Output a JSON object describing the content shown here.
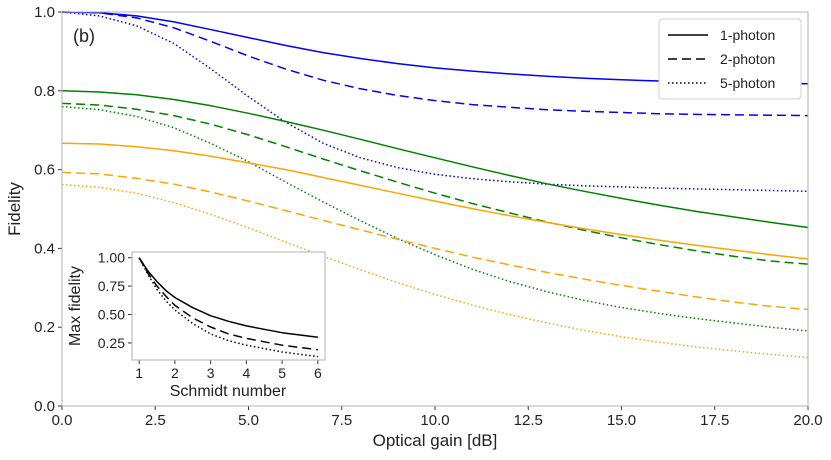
{
  "chart_data": [
    {
      "type": "line",
      "panel_label": "(b)",
      "xlabel": "Optical gain [dB]",
      "ylabel": "Fidelity",
      "xlim": [
        0,
        20
      ],
      "ylim": [
        0,
        1
      ],
      "xticks": [
        "0.0",
        "2.5",
        "5.0",
        "7.5",
        "10.0",
        "12.5",
        "15.0",
        "17.5",
        "20.0"
      ],
      "yticks": [
        "0.0",
        "0.2",
        "0.4",
        "0.6",
        "0.8",
        "1.0"
      ],
      "legend": {
        "placement": "top-right",
        "entries": [
          {
            "label": "1-photon",
            "style": "solid"
          },
          {
            "label": "2-photon",
            "style": "dashed"
          },
          {
            "label": "5-photon",
            "style": "dotted"
          }
        ]
      },
      "x": [
        0,
        1,
        2,
        3,
        4,
        5,
        6,
        7,
        8,
        9,
        10,
        11,
        12,
        13,
        14,
        15,
        16,
        17,
        18,
        19,
        20
      ],
      "series": [
        {
          "name": "blue 1-photon",
          "color": "#0000ff",
          "style": "solid",
          "values": [
            1.0,
            0.998,
            0.99,
            0.975,
            0.955,
            0.935,
            0.915,
            0.897,
            0.882,
            0.869,
            0.858,
            0.85,
            0.843,
            0.837,
            0.832,
            0.828,
            0.825,
            0.822,
            0.82,
            0.819,
            0.818
          ]
        },
        {
          "name": "blue 2-photon",
          "color": "#0000ff",
          "style": "dashed",
          "values": [
            1.0,
            0.998,
            0.985,
            0.96,
            0.925,
            0.888,
            0.855,
            0.827,
            0.805,
            0.788,
            0.775,
            0.765,
            0.758,
            0.752,
            0.748,
            0.745,
            0.742,
            0.74,
            0.739,
            0.738,
            0.737
          ]
        },
        {
          "name": "blue 5-photon",
          "color": "#0000ff",
          "style": "dotted",
          "values": [
            1.0,
            0.99,
            0.965,
            0.92,
            0.855,
            0.785,
            0.72,
            0.667,
            0.63,
            0.605,
            0.588,
            0.577,
            0.569,
            0.563,
            0.559,
            0.556,
            0.553,
            0.551,
            0.549,
            0.547,
            0.545
          ]
        },
        {
          "name": "green 1-photon",
          "color": "#008000",
          "style": "solid",
          "values": [
            0.8,
            0.797,
            0.79,
            0.778,
            0.762,
            0.743,
            0.722,
            0.7,
            0.677,
            0.653,
            0.63,
            0.607,
            0.585,
            0.564,
            0.545,
            0.527,
            0.51,
            0.494,
            0.48,
            0.466,
            0.453
          ]
        },
        {
          "name": "green 2-photon",
          "color": "#008000",
          "style": "dashed",
          "values": [
            0.768,
            0.764,
            0.753,
            0.737,
            0.715,
            0.688,
            0.658,
            0.627,
            0.597,
            0.568,
            0.54,
            0.514,
            0.49,
            0.467,
            0.446,
            0.427,
            0.41,
            0.394,
            0.38,
            0.368,
            0.36
          ]
        },
        {
          "name": "green 5-photon",
          "color": "#008000",
          "style": "dotted",
          "values": [
            0.76,
            0.752,
            0.735,
            0.706,
            0.666,
            0.62,
            0.568,
            0.518,
            0.47,
            0.425,
            0.384,
            0.347,
            0.316,
            0.29,
            0.268,
            0.25,
            0.235,
            0.222,
            0.211,
            0.2,
            0.19
          ]
        },
        {
          "name": "orange 1-photon",
          "color": "#ffa500",
          "style": "solid",
          "values": [
            0.667,
            0.665,
            0.658,
            0.648,
            0.634,
            0.617,
            0.6,
            0.58,
            0.56,
            0.54,
            0.52,
            0.501,
            0.483,
            0.466,
            0.45,
            0.435,
            0.421,
            0.408,
            0.396,
            0.384,
            0.373
          ]
        },
        {
          "name": "orange 2-photon",
          "color": "#ffa500",
          "style": "dashed",
          "values": [
            0.593,
            0.589,
            0.578,
            0.563,
            0.543,
            0.52,
            0.496,
            0.471,
            0.447,
            0.423,
            0.4,
            0.378,
            0.358,
            0.339,
            0.322,
            0.306,
            0.291,
            0.277,
            0.264,
            0.253,
            0.245
          ]
        },
        {
          "name": "orange 5-photon",
          "color": "#ffa500",
          "style": "dotted",
          "values": [
            0.562,
            0.555,
            0.54,
            0.516,
            0.486,
            0.452,
            0.416,
            0.38,
            0.346,
            0.313,
            0.283,
            0.256,
            0.232,
            0.211,
            0.192,
            0.176,
            0.162,
            0.15,
            0.14,
            0.131,
            0.123
          ]
        }
      ]
    },
    {
      "type": "line",
      "role": "inset",
      "xlabel": "Schmidt number",
      "ylabel": "Max fidelity",
      "xlim": [
        0.8,
        6.2
      ],
      "ylim": [
        0.1,
        1.05
      ],
      "xticks": [
        "1",
        "2",
        "3",
        "4",
        "5",
        "6"
      ],
      "yticks": [
        "0.25",
        "0.50",
        "0.75",
        "1.00"
      ],
      "x": [
        1,
        1.25,
        1.5,
        1.75,
        2,
        2.5,
        3,
        3.5,
        4,
        4.5,
        5,
        5.5,
        6
      ],
      "series": [
        {
          "name": "1-photon",
          "color": "#000000",
          "style": "solid",
          "values": [
            1.0,
            0.88,
            0.79,
            0.71,
            0.65,
            0.56,
            0.49,
            0.44,
            0.4,
            0.37,
            0.34,
            0.32,
            0.3
          ]
        },
        {
          "name": "2-photon",
          "color": "#000000",
          "style": "dashed",
          "values": [
            1.0,
            0.86,
            0.75,
            0.66,
            0.58,
            0.47,
            0.39,
            0.33,
            0.29,
            0.26,
            0.23,
            0.21,
            0.19
          ]
        },
        {
          "name": "5-photon",
          "color": "#000000",
          "style": "dotted",
          "values": [
            1.0,
            0.85,
            0.72,
            0.62,
            0.54,
            0.42,
            0.33,
            0.27,
            0.23,
            0.2,
            0.17,
            0.15,
            0.13
          ]
        }
      ]
    }
  ]
}
